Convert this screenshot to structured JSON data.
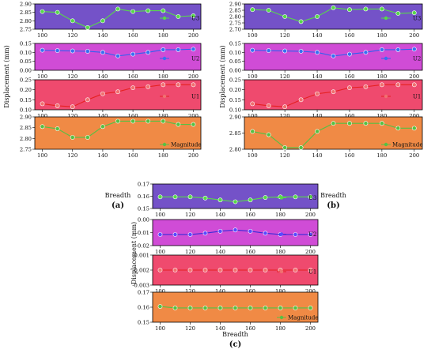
{
  "chart_data": [
    {
      "panel_label": "(a)",
      "type": "line",
      "xlabel": "Breadth",
      "ylabel": "Displacement (mm)",
      "x": [
        100,
        110,
        120,
        130,
        140,
        150,
        160,
        170,
        180,
        190,
        200
      ],
      "xticks": [
        "100",
        "120",
        "140",
        "160",
        "180",
        "200"
      ],
      "subplots": [
        {
          "legend": "U3",
          "bg": "#7452c8",
          "line": "#57d84a",
          "marker": "#57d84a",
          "ylim": [
            2.75,
            2.9
          ],
          "yticks": [
            "2.75",
            "2.80",
            "2.85",
            "2.90"
          ],
          "values": [
            2.855,
            2.85,
            2.8,
            2.76,
            2.8,
            2.87,
            2.855,
            2.86,
            2.86,
            2.825,
            2.83
          ]
        },
        {
          "legend": "U2",
          "bg": "#d04cd6",
          "line": "#3060f0",
          "marker": "#3a6ef2",
          "ylim": [
            0.0,
            0.15
          ],
          "yticks": [
            "0.00",
            "0.05",
            "0.10",
            "0.15"
          ],
          "values": [
            0.112,
            0.11,
            0.108,
            0.106,
            0.1,
            0.08,
            0.09,
            0.1,
            0.115,
            0.115,
            0.118
          ]
        },
        {
          "legend": "U1",
          "bg": "#ef4a6e",
          "line": "#e62020",
          "marker": "#f07070",
          "ylim": [
            0.1,
            0.25
          ],
          "yticks": [
            "0.10",
            "0.15",
            "0.20",
            "0.25"
          ],
          "values": [
            0.13,
            0.12,
            0.115,
            0.15,
            0.18,
            0.19,
            0.21,
            0.215,
            0.225,
            0.225,
            0.225
          ]
        },
        {
          "legend": "Magnitude",
          "bg": "#f08a45",
          "line": "#57c043",
          "marker": "#57c043",
          "ylim": [
            2.75,
            2.9
          ],
          "yticks": [
            "2.75",
            "2.80",
            "2.85",
            "2.90"
          ],
          "values": [
            2.855,
            2.845,
            2.805,
            2.805,
            2.855,
            2.88,
            2.88,
            2.88,
            2.88,
            2.865,
            2.865
          ]
        }
      ]
    },
    {
      "panel_label": "(b)",
      "type": "line",
      "xlabel": "Breadth",
      "ylabel": "Displacement (mm)",
      "x": [
        100,
        110,
        120,
        130,
        140,
        150,
        160,
        170,
        180,
        190,
        200
      ],
      "xticks": [
        "100",
        "120",
        "140",
        "160",
        "180",
        "200"
      ],
      "subplots": [
        {
          "legend": "U3",
          "bg": "#7452c8",
          "line": "#57d84a",
          "marker": "#57d84a",
          "ylim": [
            2.7,
            2.9
          ],
          "yticks": [
            "2.70",
            "2.75",
            "2.80",
            "2.85",
            "2.90"
          ],
          "values": [
            2.855,
            2.85,
            2.8,
            2.76,
            2.8,
            2.87,
            2.855,
            2.86,
            2.86,
            2.825,
            2.83
          ]
        },
        {
          "legend": "U2",
          "bg": "#d04cd6",
          "line": "#3060f0",
          "marker": "#3a6ef2",
          "ylim": [
            0.0,
            0.15
          ],
          "yticks": [
            "0.00",
            "0.05",
            "0.10",
            "0.15"
          ],
          "values": [
            0.112,
            0.11,
            0.108,
            0.106,
            0.1,
            0.08,
            0.09,
            0.1,
            0.115,
            0.115,
            0.118
          ]
        },
        {
          "legend": "U1",
          "bg": "#ef4a6e",
          "line": "#e62020",
          "marker": "#f07070",
          "ylim": [
            0.1,
            0.25
          ],
          "yticks": [
            "0.10",
            "0.15",
            "0.20",
            "0.25"
          ],
          "values": [
            0.13,
            0.12,
            0.115,
            0.15,
            0.18,
            0.19,
            0.21,
            0.215,
            0.225,
            0.225,
            0.225
          ]
        },
        {
          "legend": "Magnitude",
          "bg": "#f08a45",
          "line": "#57c043",
          "marker": "#57c043",
          "ylim": [
            2.8,
            2.9
          ],
          "yticks": [
            "2.80",
            "2.85",
            "2.90"
          ],
          "values": [
            2.855,
            2.845,
            2.805,
            2.805,
            2.855,
            2.88,
            2.88,
            2.88,
            2.88,
            2.865,
            2.865
          ]
        }
      ]
    },
    {
      "panel_label": "(c)",
      "type": "line",
      "xlabel": "Breadth",
      "ylabel": "Displacement (mm)",
      "x": [
        100,
        110,
        120,
        130,
        140,
        150,
        160,
        170,
        180,
        190,
        200
      ],
      "xticks": [
        "100",
        "120",
        "140",
        "160",
        "180",
        "200"
      ],
      "subplots": [
        {
          "legend": "U3",
          "bg": "#7452c8",
          "line": "#57d84a",
          "marker": "#57d84a",
          "ylim": [
            0.15,
            0.17
          ],
          "yticks": [
            "0.15",
            "0.16",
            "0.17"
          ],
          "values": [
            0.1595,
            0.1595,
            0.1595,
            0.1585,
            0.157,
            0.1555,
            0.157,
            0.159,
            0.1595,
            0.1595,
            0.1595
          ]
        },
        {
          "legend": "U2",
          "bg": "#d04cd6",
          "line": "#3a2bd8",
          "marker": "#5a48ff",
          "ylim": [
            -0.02,
            0.0
          ],
          "yticks": [
            "-0.02",
            "-0.01",
            "0.00"
          ],
          "values": [
            -0.0115,
            -0.0115,
            -0.0115,
            -0.0105,
            -0.009,
            -0.008,
            -0.009,
            -0.0105,
            -0.0115,
            -0.0115,
            -0.0115
          ]
        },
        {
          "legend": "U1",
          "bg": "#ef4a6e",
          "line": "#e62020",
          "marker": "#f07070",
          "ylim": [
            -0.003,
            -0.001
          ],
          "yticks": [
            "-0.003",
            "-0.002",
            "-0.001"
          ],
          "values": [
            -0.002,
            -0.002,
            -0.002,
            -0.002,
            -0.002,
            -0.002,
            -0.002,
            -0.002,
            -0.002,
            -0.002,
            -0.002
          ]
        },
        {
          "legend": "Magnitude",
          "bg": "#f08a45",
          "line": "#57c043",
          "marker": "#57c043",
          "ylim": [
            0.15,
            0.17
          ],
          "yticks": [
            "0.15",
            "0.16",
            "0.17"
          ],
          "values": [
            0.1605,
            0.1595,
            0.1595,
            0.1595,
            0.1595,
            0.1595,
            0.1595,
            0.1595,
            0.1595,
            0.1595,
            0.1595
          ]
        }
      ]
    }
  ]
}
